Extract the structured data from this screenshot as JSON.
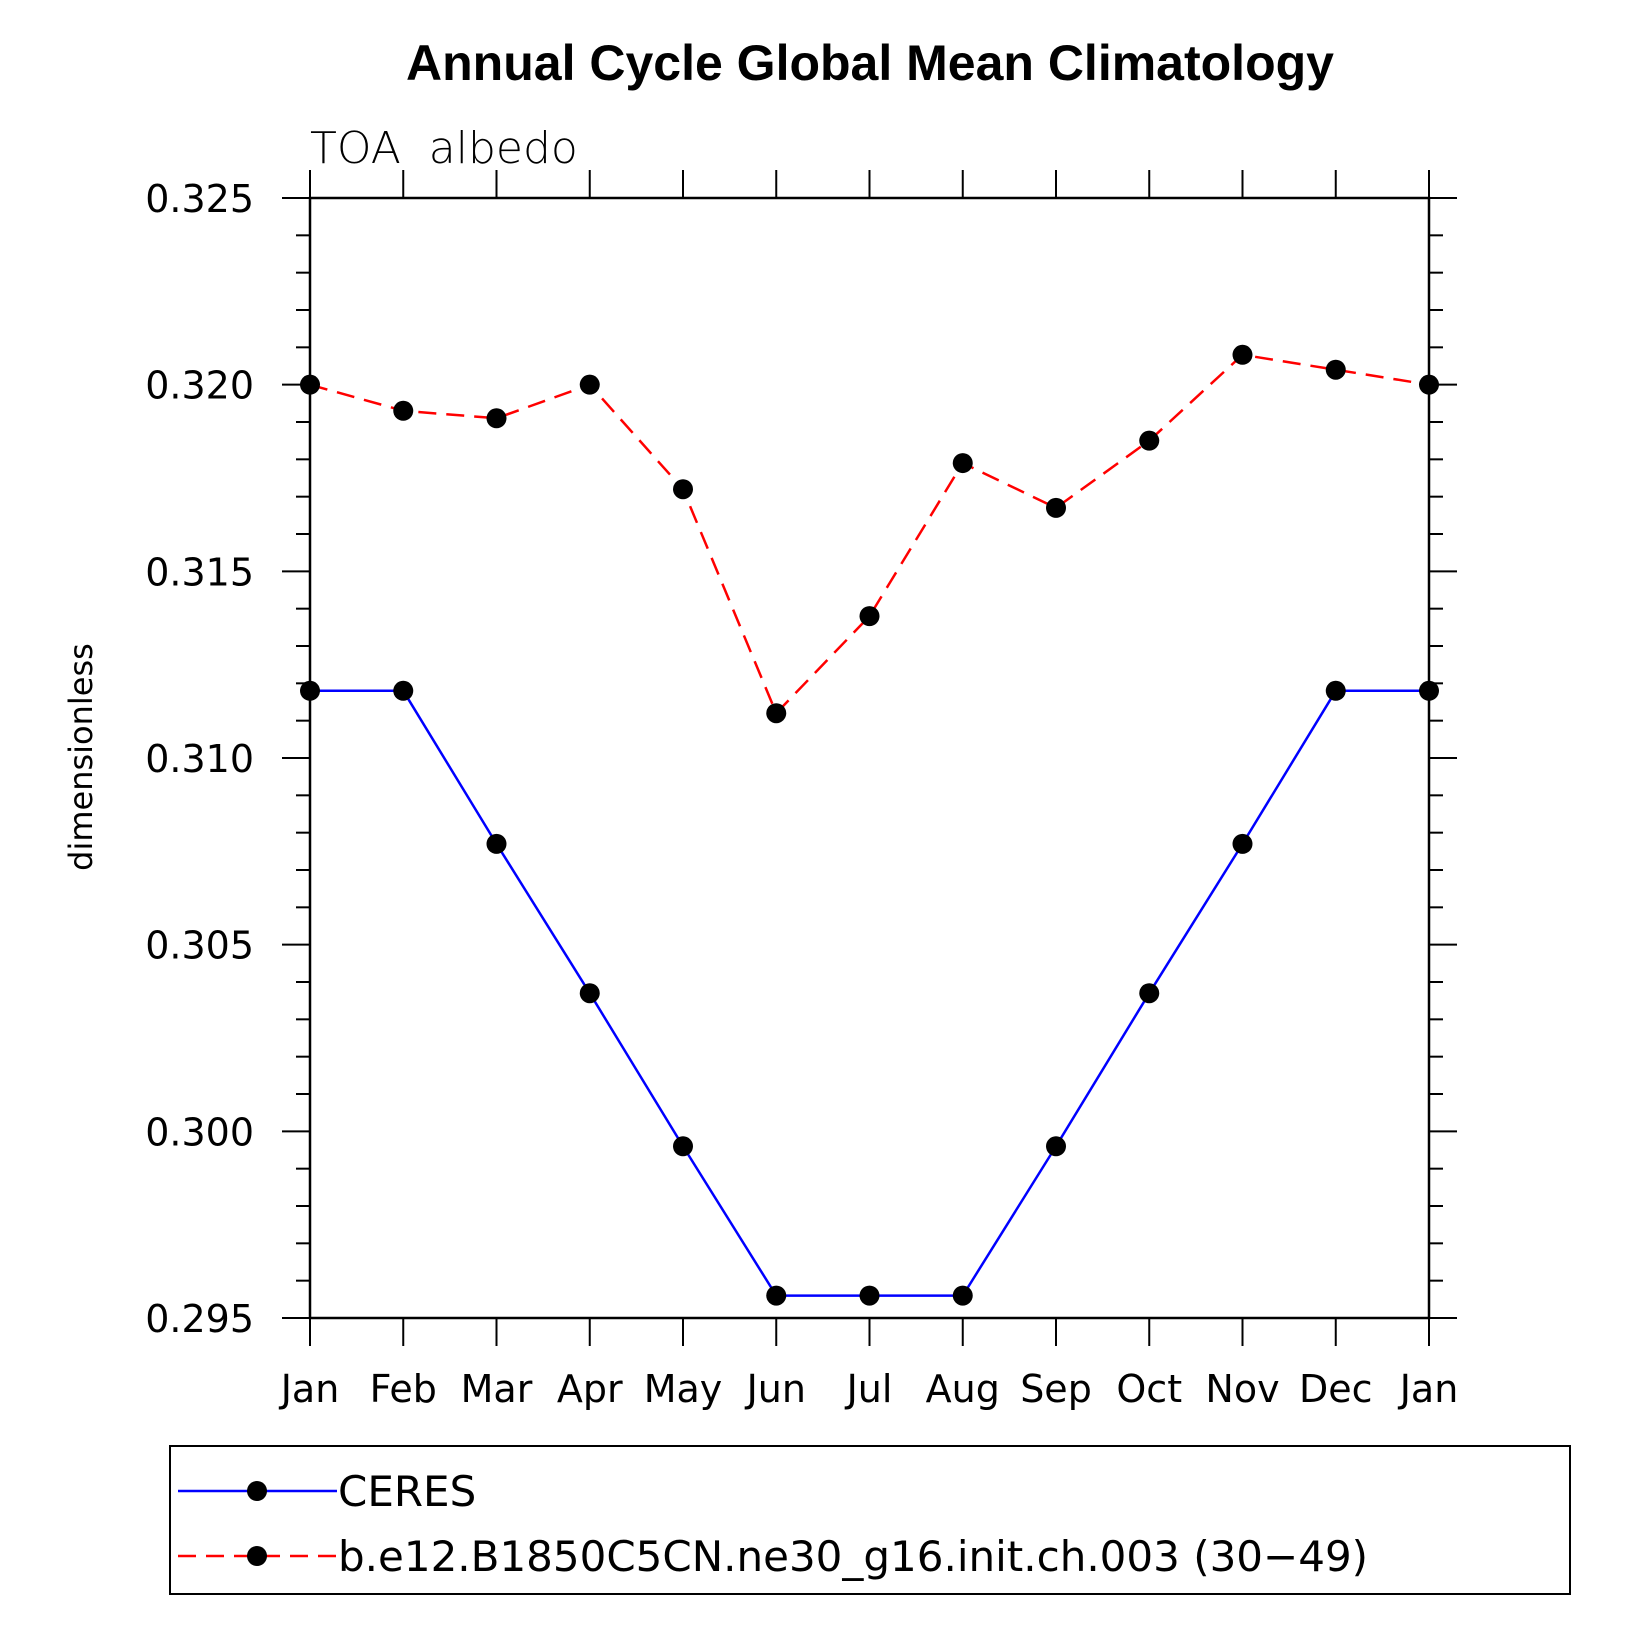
{
  "chart_data": {
    "type": "line",
    "title": "Annual Cycle Global Mean Climatology",
    "subtitle": "TOA  albedo",
    "xlabel": "",
    "ylabel": "dimensionless",
    "categories": [
      "Jan",
      "Feb",
      "Mar",
      "Apr",
      "May",
      "Jun",
      "Jul",
      "Aug",
      "Sep",
      "Oct",
      "Nov",
      "Dec",
      "Jan"
    ],
    "ylim": [
      0.295,
      0.325
    ],
    "yticks": [
      "0.295",
      "0.300",
      "0.305",
      "0.310",
      "0.315",
      "0.320",
      "0.325"
    ],
    "legend_position": "bottom",
    "grid": false,
    "series": [
      {
        "name": "CERES",
        "color": "#0000ff",
        "line_style": "solid",
        "marker": "circle",
        "values": [
          0.3118,
          0.3118,
          0.3077,
          0.3037,
          0.2996,
          0.2956,
          0.2956,
          0.2956,
          0.2996,
          0.3037,
          0.3077,
          0.3118,
          0.3118
        ]
      },
      {
        "name": "b.e12.B1850C5CN.ne30_g16.init.ch.003 (30−49)",
        "color": "#ff0000",
        "line_style": "dashed",
        "marker": "circle",
        "values": [
          0.32,
          0.3193,
          0.3191,
          0.32,
          0.3172,
          0.3112,
          0.3138,
          0.3179,
          0.3167,
          0.3185,
          0.3208,
          0.3204,
          0.32
        ]
      }
    ]
  }
}
